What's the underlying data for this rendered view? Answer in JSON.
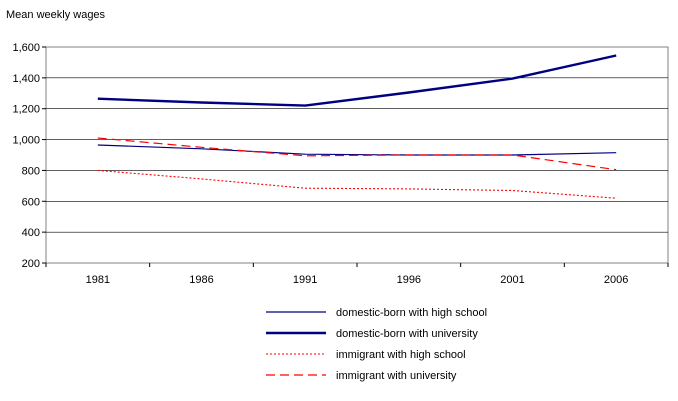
{
  "chart_data": {
    "type": "line",
    "title": "",
    "xlabel": "",
    "ylabel": "Mean weekly wages",
    "x": [
      "1981",
      "1986",
      "1991",
      "1996",
      "2001",
      "2006"
    ],
    "ylim": [
      200,
      1600
    ],
    "yticks": [
      "200",
      "400",
      "600",
      "800",
      "1,000",
      "1,200",
      "1,400",
      "1,600"
    ],
    "ytick_values": [
      200,
      400,
      600,
      800,
      1000,
      1200,
      1400,
      1600
    ],
    "grid": "horizontal",
    "legend_position": "bottom",
    "series": [
      {
        "name": "domestic-born with high school",
        "values": [
          965,
          940,
          905,
          900,
          900,
          915
        ],
        "color": "#000080",
        "style": "solid-thin"
      },
      {
        "name": "domestic-born with university",
        "values": [
          1265,
          1240,
          1220,
          1305,
          1395,
          1545
        ],
        "color": "#000080",
        "style": "solid-thick"
      },
      {
        "name": "immigrant with high school",
        "values": [
          800,
          745,
          685,
          680,
          670,
          620
        ],
        "color": "#ff0000",
        "style": "dotted"
      },
      {
        "name": "immigrant with university",
        "values": [
          1010,
          950,
          895,
          900,
          900,
          805
        ],
        "color": "#ff0000",
        "style": "dashed"
      }
    ]
  }
}
